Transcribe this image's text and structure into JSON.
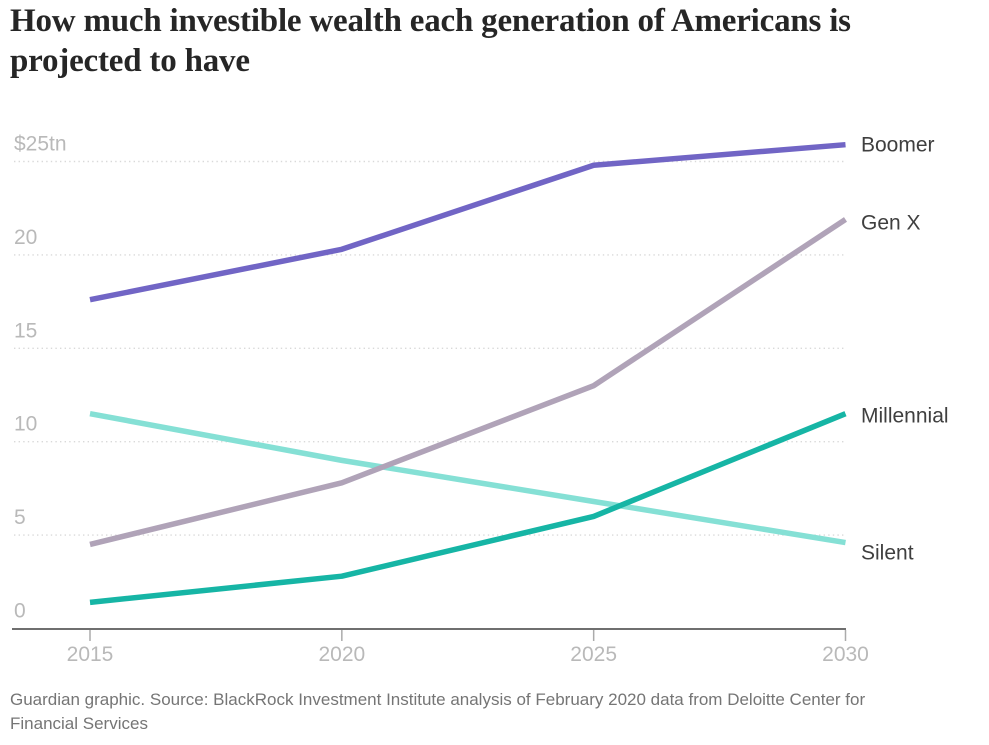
{
  "page": {
    "title": "How much investible wealth each generation of Americans is projected to have",
    "source_note": "Guardian graphic. Source: BlackRock Investment Institute analysis of February 2020 data from Deloitte Center for Financial Services"
  },
  "colors": {
    "boomer_line": "#7165c5",
    "genx_line": "#b0a3b8",
    "millennial_line": "#16b5a5",
    "silent_line": "#85e0d5",
    "axis_line": "#6f6f6f",
    "tick_mark": "#ababab",
    "gridline": "#d9d9d9",
    "axis_label_text": "#b9b9b9",
    "series_label_text": "#3f3f3f",
    "title_text": "#262626",
    "footer_text": "#757575"
  },
  "chart_data": {
    "type": "line",
    "title": "How much investible wealth each generation of Americans is projected to have",
    "x": [
      2015,
      2020,
      2025,
      2030
    ],
    "x_tick_labels": [
      "2015",
      "2020",
      "2025",
      "2030"
    ],
    "y_ticks": [
      {
        "value": 25,
        "label": "$25tn"
      },
      {
        "value": 20,
        "label": "20"
      },
      {
        "value": 15,
        "label": "15"
      },
      {
        "value": 10,
        "label": "10"
      },
      {
        "value": 5,
        "label": "5"
      },
      {
        "value": 0,
        "label": "0"
      }
    ],
    "ylim": [
      0,
      25
    ],
    "xlim": [
      2015,
      2030
    ],
    "grid": "horizontal-dotted",
    "legend_position": "end-of-line-labels-right",
    "series": [
      {
        "name": "Boomer",
        "color": "#7165c5",
        "values": [
          17.6,
          20.3,
          24.8,
          25.9
        ],
        "label_dy": 7
      },
      {
        "name": "Gen X",
        "color": "#b0a3b8",
        "values": [
          4.5,
          7.8,
          13.0,
          21.9
        ],
        "label_dy": 10
      },
      {
        "name": "Millennial",
        "color": "#16b5a5",
        "values": [
          1.4,
          2.8,
          6.0,
          11.5
        ],
        "label_dy": 9
      },
      {
        "name": "Silent",
        "color": "#85e0d5",
        "values": [
          11.5,
          9.0,
          6.8,
          4.6
        ],
        "label_dy": 17
      }
    ]
  }
}
